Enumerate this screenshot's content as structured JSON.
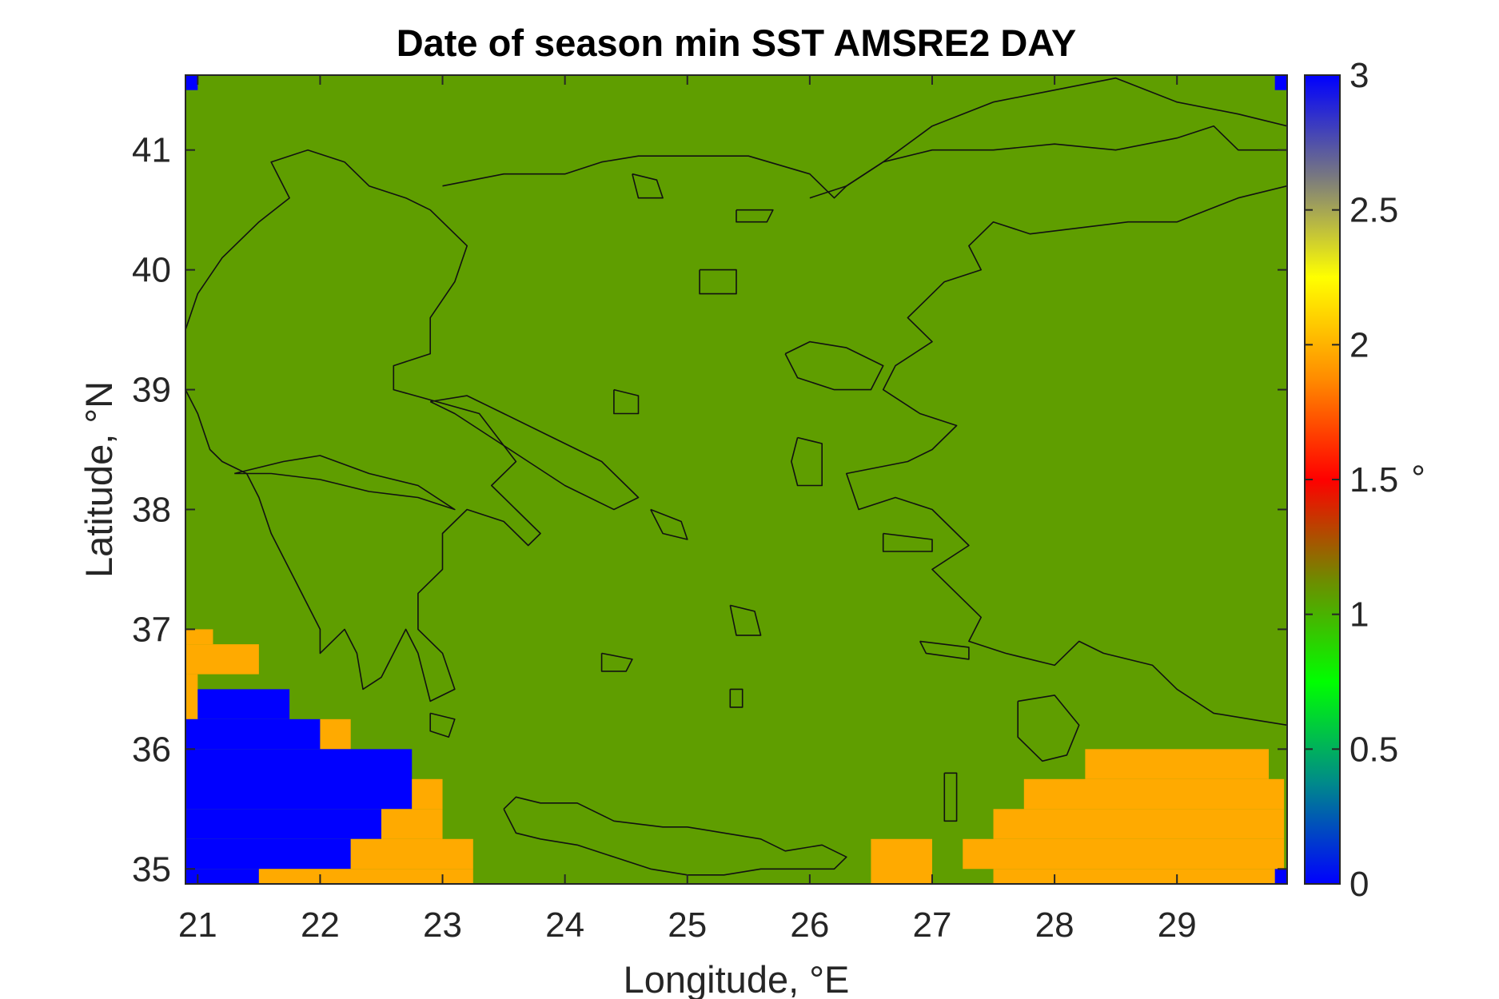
{
  "chart_data": {
    "type": "heatmap",
    "title": "Date of season min SST AMSRE2 DAY",
    "xlabel": "Longitude, °E",
    "ylabel": "Latitude, °N",
    "xlim": [
      20.9,
      29.9
    ],
    "ylim": [
      34.875,
      41.625
    ],
    "xticks": [
      21,
      22,
      23,
      24,
      25,
      26,
      27,
      28,
      29
    ],
    "yticks": [
      35,
      36,
      37,
      38,
      39,
      40,
      41
    ],
    "grid": false,
    "background_value": 1,
    "cell_size_deg": 0.25,
    "colorbar": {
      "min": 0,
      "max": 3,
      "ticks": [
        "0",
        "0.5",
        "1",
        "1.5",
        "2",
        "2.5",
        "3"
      ],
      "unit": "°",
      "stops": [
        "#0000ff",
        "#008a8a",
        "#00ff00",
        "#6e8c00",
        "#ff0000",
        "#ff8c00",
        "#ffff00",
        "#787880",
        "#0000ff"
      ]
    },
    "cell_colors": {
      "0": "#0000ff",
      "1": "#5f9e00",
      "2": "#ffaa00"
    },
    "regions": [
      {
        "value": 2,
        "lon": [
          20.875,
          21.125
        ],
        "lat": [
          36.875,
          37.0
        ]
      },
      {
        "value": 2,
        "lon": [
          20.875,
          21.5
        ],
        "lat": [
          36.625,
          36.875
        ]
      },
      {
        "value": 2,
        "lon": [
          20.875,
          21.0
        ],
        "lat": [
          36.25,
          36.625
        ]
      },
      {
        "value": 0,
        "lon": [
          21.0,
          21.75
        ],
        "lat": [
          36.25,
          36.5
        ]
      },
      {
        "value": 0,
        "lon": [
          20.875,
          22.0
        ],
        "lat": [
          36.0,
          36.25
        ]
      },
      {
        "value": 2,
        "lon": [
          22.0,
          22.25
        ],
        "lat": [
          36.0,
          36.25
        ]
      },
      {
        "value": 0,
        "lon": [
          20.875,
          22.75
        ],
        "lat": [
          35.5,
          36.0
        ]
      },
      {
        "value": 2,
        "lon": [
          22.75,
          23.0
        ],
        "lat": [
          35.5,
          35.75
        ]
      },
      {
        "value": 0,
        "lon": [
          20.875,
          22.5
        ],
        "lat": [
          35.25,
          35.5
        ]
      },
      {
        "value": 2,
        "lon": [
          22.5,
          23.0
        ],
        "lat": [
          35.25,
          35.5
        ]
      },
      {
        "value": 0,
        "lon": [
          20.875,
          22.25
        ],
        "lat": [
          35.0,
          35.25
        ]
      },
      {
        "value": 2,
        "lon": [
          22.25,
          23.25
        ],
        "lat": [
          35.0,
          35.25
        ]
      },
      {
        "value": 0,
        "lon": [
          20.875,
          21.5
        ],
        "lat": [
          34.875,
          35.0
        ]
      },
      {
        "value": 2,
        "lon": [
          21.5,
          23.25
        ],
        "lat": [
          34.875,
          35.0
        ]
      },
      {
        "value": 2,
        "lon": [
          26.5,
          27.0
        ],
        "lat": [
          34.875,
          35.25
        ]
      },
      {
        "value": 2,
        "lon": [
          27.25,
          29.875
        ],
        "lat": [
          35.0,
          35.25
        ]
      },
      {
        "value": 2,
        "lon": [
          27.5,
          29.875
        ],
        "lat": [
          34.875,
          35.0
        ]
      },
      {
        "value": 2,
        "lon": [
          27.5,
          29.875
        ],
        "lat": [
          35.25,
          35.5
        ]
      },
      {
        "value": 2,
        "lon": [
          27.75,
          29.875
        ],
        "lat": [
          35.5,
          35.75
        ]
      },
      {
        "value": 2,
        "lon": [
          28.25,
          29.75
        ],
        "lat": [
          35.75,
          36.0
        ]
      },
      {
        "value": 0,
        "lon": [
          20.9,
          21.0
        ],
        "lat": [
          41.5,
          41.625
        ]
      },
      {
        "value": 0,
        "lon": [
          29.8,
          29.9
        ],
        "lat": [
          41.5,
          41.625
        ]
      },
      {
        "value": 0,
        "lon": [
          29.8,
          29.9
        ],
        "lat": [
          34.875,
          35.0
        ]
      }
    ],
    "coastlines": [
      {
        "name": "mainland-greece",
        "lon": [
          20.9,
          21.0,
          21.2,
          21.5,
          21.75,
          21.6,
          21.9,
          22.2,
          22.4,
          22.7,
          22.9,
          23.2,
          23.1,
          22.9,
          22.9,
          22.6,
          22.6,
          22.95,
          23.3,
          23.6,
          23.4,
          23.6,
          23.8,
          23.7,
          23.5,
          23.2,
          23.0,
          23.0,
          22.8,
          22.8,
          23.0,
          23.1,
          22.9,
          22.8,
          22.7,
          22.6,
          22.5,
          22.35,
          22.3,
          22.2,
          22.1,
          22.0,
          22.0,
          21.9,
          21.8,
          21.7,
          21.6,
          21.5,
          21.4,
          21.3,
          21.2,
          21.1,
          21.0,
          20.9
        ],
        "lat": [
          39.5,
          39.8,
          40.1,
          40.4,
          40.6,
          40.9,
          41.0,
          40.9,
          40.7,
          40.6,
          40.5,
          40.2,
          39.9,
          39.6,
          39.3,
          39.2,
          39.0,
          38.9,
          38.8,
          38.4,
          38.2,
          38.0,
          37.8,
          37.7,
          37.9,
          38.0,
          37.8,
          37.5,
          37.3,
          37.0,
          36.8,
          36.5,
          36.4,
          36.8,
          37.0,
          36.8,
          36.6,
          36.5,
          36.8,
          37.0,
          36.9,
          36.8,
          37.0,
          37.2,
          37.4,
          37.6,
          37.8,
          38.1,
          38.3,
          38.35,
          38.4,
          38.5,
          38.8,
          39.0
        ]
      },
      {
        "name": "peloponnese-gulf",
        "lon": [
          21.3,
          21.7,
          22.0,
          22.4,
          22.8,
          23.1,
          22.8,
          22.4,
          22.0,
          21.6,
          21.3
        ],
        "lat": [
          38.3,
          38.4,
          38.45,
          38.3,
          38.2,
          38.0,
          38.1,
          38.15,
          38.25,
          38.3,
          38.3
        ]
      },
      {
        "name": "turkey-west",
        "lon": [
          29.9,
          29.5,
          29.0,
          28.6,
          28.2,
          27.8,
          27.5,
          27.3,
          27.4,
          27.1,
          26.8,
          27.0,
          26.7,
          26.6,
          26.9,
          27.2,
          27.0,
          26.8,
          26.3,
          26.4,
          26.7,
          27.0,
          27.3,
          27.0,
          27.2,
          27.4,
          27.3,
          27.6,
          28.0,
          28.2,
          28.4,
          28.8,
          29.0,
          29.3,
          29.6,
          29.9
        ],
        "lat": [
          40.7,
          40.6,
          40.4,
          40.4,
          40.35,
          40.3,
          40.4,
          40.2,
          40.0,
          39.9,
          39.6,
          39.4,
          39.2,
          39.0,
          38.8,
          38.7,
          38.5,
          38.4,
          38.3,
          38.0,
          38.1,
          38.0,
          37.7,
          37.5,
          37.3,
          37.1,
          36.9,
          36.8,
          36.7,
          36.9,
          36.8,
          36.7,
          36.5,
          36.3,
          36.25,
          36.2
        ]
      },
      {
        "name": "marmara-north",
        "lon": [
          26.0,
          26.3,
          26.6,
          27.0,
          27.5,
          28.0,
          28.5,
          29.0,
          29.3,
          29.5,
          29.9
        ],
        "lat": [
          40.6,
          40.7,
          40.9,
          41.0,
          41.0,
          41.05,
          41.0,
          41.1,
          41.2,
          41.0,
          41.0
        ]
      },
      {
        "name": "thrace-coast",
        "lon": [
          23.0,
          23.5,
          24.0,
          24.3,
          24.6,
          25.0,
          25.5,
          26.0,
          26.2,
          26.3,
          26.6,
          27.0,
          27.5,
          28.0,
          28.5,
          29.0,
          29.5,
          29.9
        ],
        "lat": [
          40.7,
          40.8,
          40.8,
          40.9,
          40.95,
          40.95,
          40.95,
          40.8,
          40.6,
          40.7,
          40.9,
          41.2,
          41.4,
          41.5,
          41.6,
          41.4,
          41.3,
          41.2
        ]
      },
      {
        "name": "crete",
        "lon": [
          23.5,
          23.6,
          23.8,
          24.1,
          24.4,
          24.8,
          25.0,
          25.3,
          25.6,
          25.8,
          26.1,
          26.3,
          26.2,
          26.0,
          25.6,
          25.3,
          25.0,
          24.7,
          24.4,
          24.1,
          23.8,
          23.6,
          23.5
        ],
        "lat": [
          35.5,
          35.6,
          35.55,
          35.55,
          35.4,
          35.35,
          35.35,
          35.3,
          35.25,
          35.15,
          35.2,
          35.1,
          35.0,
          35.0,
          35.0,
          34.95,
          34.95,
          35.0,
          35.1,
          35.2,
          35.25,
          35.3,
          35.5
        ]
      },
      {
        "name": "euboea",
        "lon": [
          22.9,
          23.2,
          23.5,
          23.9,
          24.3,
          24.6,
          24.4,
          24.0,
          23.7,
          23.4,
          23.1,
          22.9
        ],
        "lat": [
          38.9,
          38.95,
          38.8,
          38.6,
          38.4,
          38.1,
          38.0,
          38.2,
          38.4,
          38.6,
          38.8,
          38.9
        ]
      },
      {
        "name": "lesbos",
        "lon": [
          25.8,
          26.0,
          26.3,
          26.6,
          26.5,
          26.2,
          25.9,
          25.8
        ],
        "lat": [
          39.3,
          39.4,
          39.35,
          39.2,
          39.0,
          39.0,
          39.1,
          39.3
        ]
      },
      {
        "name": "chios",
        "lon": [
          25.9,
          26.1,
          26.1,
          25.9,
          25.85,
          25.9
        ],
        "lat": [
          38.6,
          38.55,
          38.2,
          38.2,
          38.4,
          38.6
        ]
      },
      {
        "name": "rhodes",
        "lon": [
          27.7,
          28.0,
          28.2,
          28.1,
          27.9,
          27.7,
          27.7
        ],
        "lat": [
          36.4,
          36.45,
          36.2,
          35.95,
          35.9,
          36.1,
          36.4
        ]
      },
      {
        "name": "thasos",
        "lon": [
          24.55,
          24.75,
          24.8,
          24.6,
          24.55
        ],
        "lat": [
          40.8,
          40.75,
          40.6,
          40.6,
          40.8
        ]
      },
      {
        "name": "samothrace",
        "lon": [
          25.4,
          25.7,
          25.65,
          25.4,
          25.4
        ],
        "lat": [
          40.5,
          40.5,
          40.4,
          40.4,
          40.5
        ]
      },
      {
        "name": "lemnos",
        "lon": [
          25.1,
          25.4,
          25.4,
          25.1,
          25.1
        ],
        "lat": [
          40.0,
          40.0,
          39.8,
          39.8,
          40.0
        ]
      },
      {
        "name": "skyros",
        "lon": [
          24.4,
          24.6,
          24.6,
          24.4,
          24.4
        ],
        "lat": [
          39.0,
          38.95,
          38.8,
          38.8,
          39.0
        ]
      },
      {
        "name": "naxos",
        "lon": [
          25.35,
          25.55,
          25.6,
          25.4,
          25.35
        ],
        "lat": [
          37.2,
          37.15,
          36.95,
          36.95,
          37.2
        ]
      },
      {
        "name": "andros",
        "lon": [
          24.7,
          24.95,
          25.0,
          24.8,
          24.7
        ],
        "lat": [
          38.0,
          37.9,
          37.75,
          37.8,
          38.0
        ]
      },
      {
        "name": "samos",
        "lon": [
          26.6,
          27.0,
          27.0,
          26.6,
          26.6
        ],
        "lat": [
          37.8,
          37.75,
          37.65,
          37.65,
          37.8
        ]
      },
      {
        "name": "kos",
        "lon": [
          26.9,
          27.3,
          27.3,
          26.95,
          26.9
        ],
        "lat": [
          36.9,
          36.85,
          36.75,
          36.8,
          36.9
        ]
      },
      {
        "name": "kythira",
        "lon": [
          22.9,
          23.1,
          23.05,
          22.9,
          22.9
        ],
        "lat": [
          36.3,
          36.25,
          36.1,
          36.15,
          36.3
        ]
      },
      {
        "name": "karpathos",
        "lon": [
          27.1,
          27.2,
          27.2,
          27.1,
          27.1
        ],
        "lat": [
          35.8,
          35.8,
          35.4,
          35.4,
          35.8
        ]
      },
      {
        "name": "thera",
        "lon": [
          25.35,
          25.45,
          25.45,
          25.35,
          25.35
        ],
        "lat": [
          36.5,
          36.5,
          36.35,
          36.35,
          36.5
        ]
      },
      {
        "name": "milos",
        "lon": [
          24.3,
          24.55,
          24.5,
          24.3,
          24.3
        ],
        "lat": [
          36.8,
          36.75,
          36.65,
          36.65,
          36.8
        ]
      }
    ]
  }
}
